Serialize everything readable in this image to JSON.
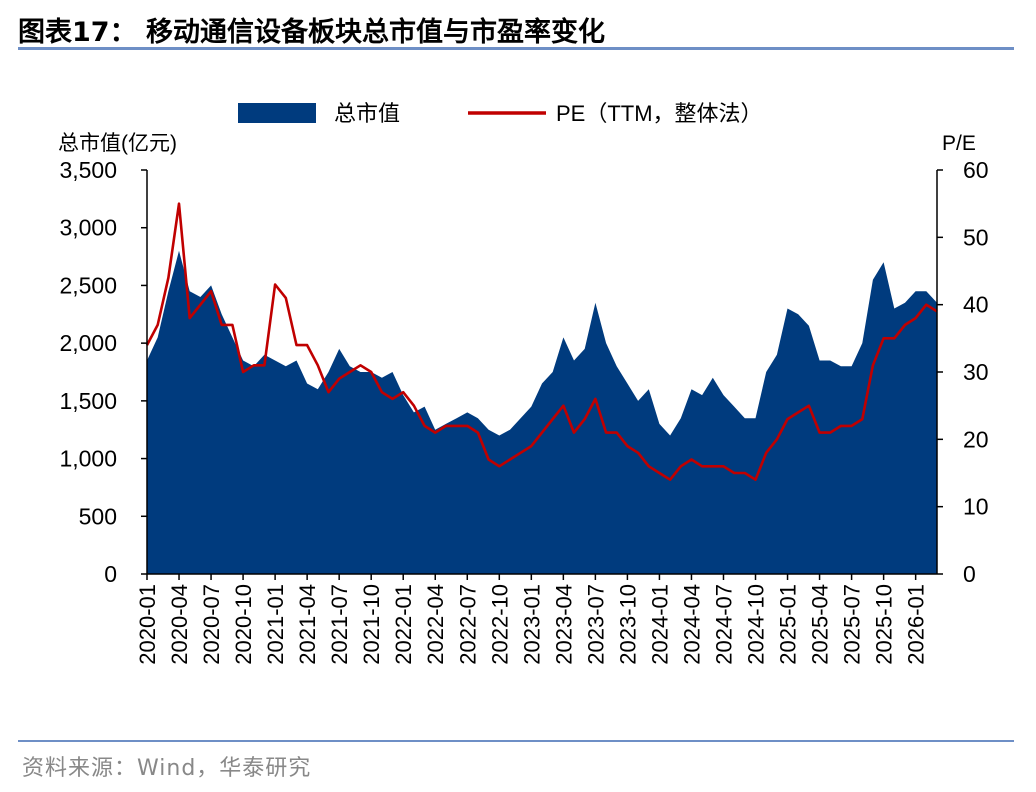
{
  "header": {
    "title": "图表17：  移动通信设备板块总市值与市盈率变化"
  },
  "footer": {
    "source": "资料来源：Wind，华泰研究"
  },
  "colors": {
    "area": "#003b7e",
    "line": "#c00000",
    "rule": "#6e8fc6",
    "source_text": "#888888"
  },
  "chart_data": {
    "type": "area",
    "title": "",
    "legend": {
      "position": "top",
      "entries": [
        "总市值",
        "PE（TTM，整体法）"
      ]
    },
    "y_left": {
      "label": "总市值(亿元)",
      "range": [
        0,
        3500
      ],
      "ticks": [
        "0",
        "500",
        "1,000",
        "1,500",
        "2,000",
        "2,500",
        "3,000",
        "3,500"
      ]
    },
    "y_right": {
      "label": "P/E",
      "range": [
        0,
        60
      ],
      "ticks": [
        "0",
        "10",
        "20",
        "30",
        "40",
        "50",
        "60"
      ]
    },
    "x_axis": {
      "start": "2020-01",
      "end": "2026-03",
      "tick_labels": [
        "2020-01",
        "2020-04",
        "2020-07",
        "2020-10",
        "2021-01",
        "2021-04",
        "2021-07",
        "2021-10",
        "2022-01",
        "2022-04",
        "2022-07",
        "2022-10",
        "2023-01",
        "2023-04",
        "2023-07",
        "2023-10",
        "2024-01",
        "2024-04",
        "2024-07",
        "2024-10",
        "2025-01",
        "2025-04",
        "2025-07",
        "2025-10",
        "2026-01"
      ]
    },
    "grid": false,
    "series": [
      {
        "name": "总市值",
        "axis": "left",
        "type": "area",
        "x": [
          "2020-01",
          "2020-02",
          "2020-03",
          "2020-04",
          "2020-05",
          "2020-06",
          "2020-07",
          "2020-08",
          "2020-09",
          "2020-10",
          "2020-11",
          "2020-12",
          "2021-01",
          "2021-02",
          "2021-03",
          "2021-04",
          "2021-05",
          "2021-06",
          "2021-07",
          "2021-08",
          "2021-09",
          "2021-10",
          "2021-11",
          "2021-12",
          "2022-01",
          "2022-02",
          "2022-03",
          "2022-04",
          "2022-05",
          "2022-06",
          "2022-07",
          "2022-08",
          "2022-09",
          "2022-10",
          "2022-11",
          "2022-12",
          "2023-01",
          "2023-02",
          "2023-03",
          "2023-04",
          "2023-05",
          "2023-06",
          "2023-07",
          "2023-08",
          "2023-09",
          "2023-10",
          "2023-11",
          "2023-12",
          "2024-01",
          "2024-02",
          "2024-03",
          "2024-04",
          "2024-05",
          "2024-06",
          "2024-07",
          "2024-08",
          "2024-09",
          "2024-10",
          "2024-11",
          "2024-12",
          "2025-01",
          "2025-02",
          "2025-03",
          "2025-04",
          "2025-05",
          "2025-06",
          "2025-07",
          "2025-08",
          "2025-09",
          "2025-10",
          "2025-11",
          "2025-12",
          "2026-01",
          "2026-02",
          "2026-03"
        ],
        "values": [
          1850,
          2050,
          2450,
          2800,
          2450,
          2400,
          2500,
          2250,
          2050,
          1850,
          1800,
          1900,
          1850,
          1800,
          1850,
          1650,
          1600,
          1750,
          1950,
          1800,
          1750,
          1750,
          1700,
          1750,
          1550,
          1400,
          1450,
          1250,
          1300,
          1350,
          1400,
          1350,
          1250,
          1200,
          1250,
          1350,
          1450,
          1650,
          1750,
          2050,
          1850,
          1950,
          2350,
          2000,
          1800,
          1650,
          1500,
          1600,
          1300,
          1200,
          1350,
          1600,
          1550,
          1700,
          1550,
          1450,
          1350,
          1350,
          1750,
          1900,
          2300,
          2250,
          2150,
          1850,
          1850,
          1800,
          1800,
          2000,
          2550,
          2700,
          2300,
          2350,
          2450,
          2450,
          2350
        ]
      },
      {
        "name": "PE（TTM，整体法）",
        "axis": "right",
        "type": "line",
        "x": [
          "2020-01",
          "2020-02",
          "2020-03",
          "2020-04",
          "2020-05",
          "2020-06",
          "2020-07",
          "2020-08",
          "2020-09",
          "2020-10",
          "2020-11",
          "2020-12",
          "2021-01",
          "2021-02",
          "2021-03",
          "2021-04",
          "2021-05",
          "2021-06",
          "2021-07",
          "2021-08",
          "2021-09",
          "2021-10",
          "2021-11",
          "2021-12",
          "2022-01",
          "2022-02",
          "2022-03",
          "2022-04",
          "2022-05",
          "2022-06",
          "2022-07",
          "2022-08",
          "2022-09",
          "2022-10",
          "2022-11",
          "2022-12",
          "2023-01",
          "2023-02",
          "2023-03",
          "2023-04",
          "2023-05",
          "2023-06",
          "2023-07",
          "2023-08",
          "2023-09",
          "2023-10",
          "2023-11",
          "2023-12",
          "2024-01",
          "2024-02",
          "2024-03",
          "2024-04",
          "2024-05",
          "2024-06",
          "2024-07",
          "2024-08",
          "2024-09",
          "2024-10",
          "2024-11",
          "2024-12",
          "2025-01",
          "2025-02",
          "2025-03",
          "2025-04",
          "2025-05",
          "2025-06",
          "2025-07",
          "2025-08",
          "2025-09",
          "2025-10",
          "2025-11",
          "2025-12",
          "2026-01",
          "2026-02",
          "2026-03"
        ],
        "values": [
          34,
          37,
          44,
          55,
          38,
          40,
          42,
          37,
          37,
          30,
          31,
          31,
          43,
          41,
          34,
          34,
          31,
          27,
          29,
          30,
          31,
          30,
          27,
          26,
          27,
          25,
          22,
          21,
          22,
          22,
          22,
          21,
          17,
          16,
          17,
          18,
          19,
          21,
          23,
          25,
          21,
          23,
          26,
          21,
          21,
          19,
          18,
          16,
          15,
          14,
          16,
          17,
          16,
          16,
          16,
          15,
          15,
          14,
          18,
          20,
          23,
          24,
          25,
          21,
          21,
          22,
          22,
          23,
          31,
          35,
          35,
          37,
          38,
          40,
          39
        ]
      }
    ]
  }
}
